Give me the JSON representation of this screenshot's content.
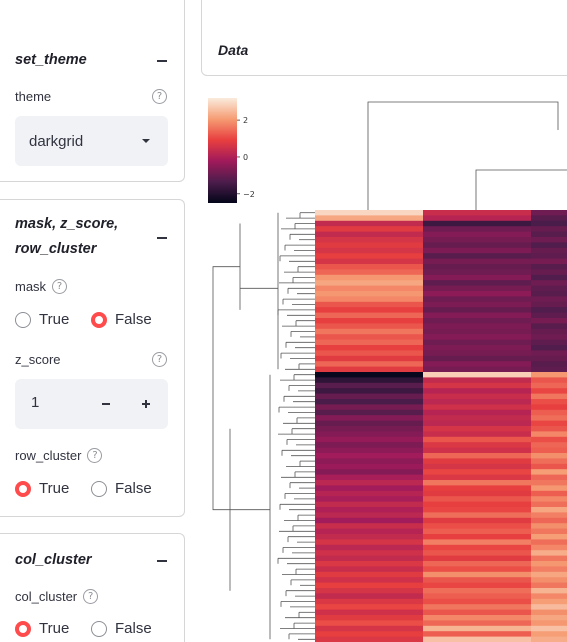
{
  "panels": {
    "set_theme": {
      "title": "set_theme",
      "theme_label": "theme",
      "theme_value": "darkgrid"
    },
    "mask_zscore_rowcluster": {
      "title_line1": "mask, z_score,",
      "title_line2": "row_cluster",
      "mask_label": "mask",
      "mask_options": [
        "True",
        "False"
      ],
      "mask_selected": "False",
      "zscore_label": "z_score",
      "zscore_value": "1",
      "row_cluster_label": "row_cluster",
      "row_cluster_options": [
        "True",
        "False"
      ],
      "row_cluster_selected": "True"
    },
    "col_cluster": {
      "title": "col_cluster",
      "col_cluster_label": "col_cluster",
      "col_cluster_options": [
        "True",
        "False"
      ],
      "col_cluster_selected": "True"
    }
  },
  "main": {
    "data_title": "Data"
  },
  "chart_data": {
    "type": "heatmap",
    "colormap": "rocket",
    "colorbar_ticks": [
      "2",
      "0",
      "−2"
    ],
    "colorbar_range": [
      -2.5,
      3.2
    ],
    "columns_visible": 3,
    "column_values": [
      [
        2.9,
        2.2,
        0.3,
        0.8,
        0.3,
        0.6,
        0.8,
        0.6,
        0.9,
        0.6,
        1.2,
        1.4,
        2.0,
        2.2,
        1.8,
        2.0,
        1.8,
        1.2,
        0.9,
        1.4,
        0.9,
        1.2,
        1.6,
        1.2,
        1.4,
        0.9,
        1.2,
        0.8,
        1.4,
        0.8,
        -2.4,
        -1.8,
        -1.2,
        -1.6,
        -1.0,
        -1.4,
        -0.8,
        -1.2,
        -0.6,
        -1.0,
        -0.8,
        -0.6,
        -0.4,
        -0.7,
        -0.5,
        -0.2,
        -0.5,
        -0.3,
        -0.6,
        -0.1,
        0.2,
        -0.2,
        0.1,
        -0.1,
        0.3,
        0.0,
        0.2,
        -0.2,
        0.4,
        0.1,
        0.3,
        0.6,
        0.2,
        0.5,
        0.3,
        0.7,
        0.4,
        0.8,
        0.5,
        0.9,
        0.6,
        0.3,
        0.7,
        1.0,
        0.5,
        0.8,
        1.1,
        0.6,
        0.9,
        0.7
      ],
      [
        0.4,
        0.1,
        -1.6,
        -0.9,
        -0.6,
        -0.8,
        -1.0,
        -0.7,
        -1.2,
        -0.8,
        -1.0,
        -0.9,
        -0.6,
        -1.1,
        -0.8,
        -0.5,
        -0.9,
        -0.7,
        -1.0,
        -0.6,
        -0.9,
        -0.7,
        -0.8,
        -0.6,
        -0.9,
        -0.7,
        -0.8,
        -1.0,
        -0.6,
        -0.8,
        2.8,
        0.3,
        0.6,
        0.1,
        0.4,
        0.2,
        0.5,
        0.1,
        0.3,
        0.2,
        0.6,
        0.4,
        1.2,
        0.7,
        0.5,
        1.4,
        0.8,
        0.6,
        1.0,
        0.7,
        1.6,
        0.9,
        0.8,
        1.2,
        0.9,
        1.0,
        1.5,
        0.8,
        1.1,
        1.3,
        0.9,
        1.7,
        1.0,
        1.2,
        0.8,
        1.4,
        1.1,
        1.9,
        1.2,
        1.0,
        1.5,
        1.3,
        1.1,
        1.6,
        1.2,
        1.8,
        1.4,
        2.4,
        1.3,
        2.6
      ],
      [
        -0.9,
        -1.2,
        -1.4,
        -1.0,
        -1.2,
        -0.9,
        -1.3,
        -1.0,
        -1.1,
        -0.8,
        -1.2,
        -1.0,
        -1.3,
        -0.9,
        -1.1,
        -1.2,
        -0.9,
        -1.0,
        -1.3,
        -1.1,
        -0.8,
        -1.2,
        -1.0,
        -0.9,
        -1.1,
        -1.3,
        -0.9,
        -1.0,
        -1.2,
        -1.1,
        2.0,
        1.2,
        1.4,
        1.0,
        1.6,
        1.1,
        0.9,
        1.3,
        1.5,
        1.0,
        1.2,
        1.8,
        1.1,
        1.4,
        1.3,
        1.9,
        1.5,
        1.2,
        2.1,
        1.4,
        1.6,
        2.0,
        1.3,
        1.8,
        1.5,
        2.2,
        1.7,
        1.4,
        1.9,
        1.6,
        2.1,
        1.5,
        1.8,
        2.3,
        1.6,
        2.0,
        1.7,
        2.2,
        1.9,
        1.6,
        2.4,
        1.8,
        2.1,
        2.5,
        1.9,
        2.2,
        2.0,
        2.6,
        2.1,
        2.3
      ]
    ]
  }
}
